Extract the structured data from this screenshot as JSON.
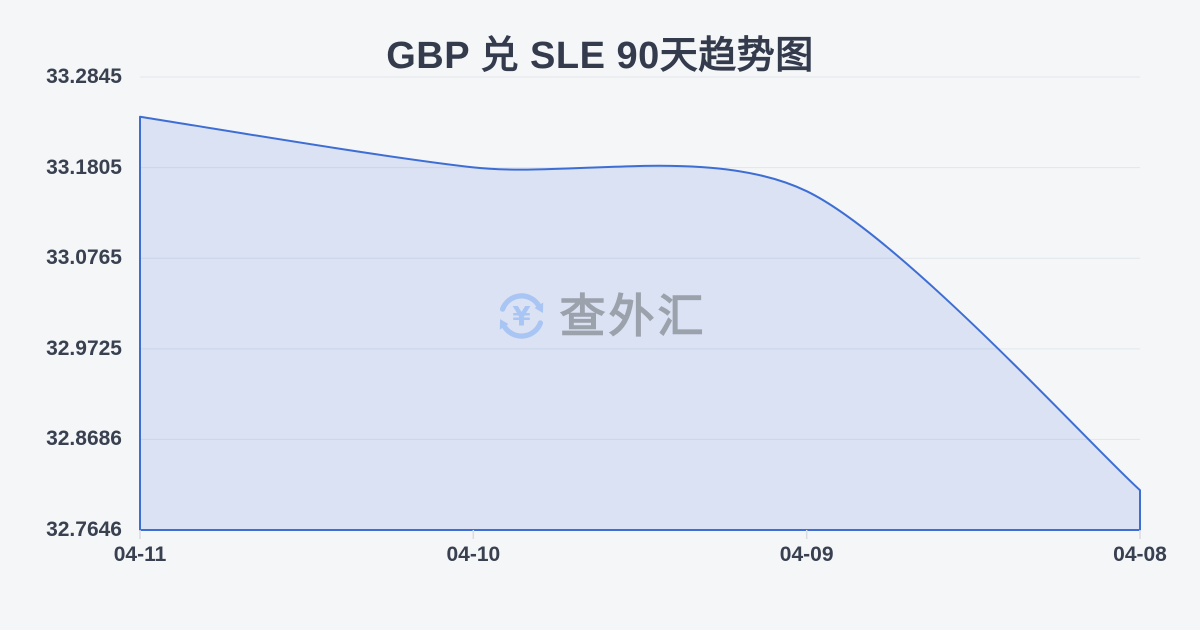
{
  "chart": {
    "title": "GBP 兑 SLE 90天趋势图"
  },
  "chart_data": {
    "type": "area",
    "title": "GBP 兑 SLE 90天趋势图",
    "categories": [
      "04-11",
      "04-10",
      "04-09",
      "04-08"
    ],
    "values": [
      33.2389,
      33.1808,
      33.1534,
      32.8103
    ],
    "series": [
      {
        "name": "GBP/SLE",
        "values": [
          33.2389,
          33.1808,
          33.1534,
          32.8103
        ]
      }
    ],
    "xlabel": "",
    "ylabel": "",
    "ylim": [
      32.7646,
      33.2845
    ],
    "y_ticks": [
      "33.2845",
      "33.1805",
      "33.0765",
      "32.9725",
      "32.8686",
      "32.7646"
    ],
    "x_ticks": [
      "04-11",
      "04-10",
      "04-09",
      "04-08"
    ],
    "grid": true,
    "legend": false,
    "smooth": true,
    "note": "x axis runs newest (04-11) to oldest (04-08), left to right"
  },
  "watermark": {
    "text": "查外汇",
    "icon": "yen-exchange-refresh-icon"
  },
  "colors": {
    "background": "#f5f6f8",
    "line": "#3e6ed3",
    "area_fill": "rgba(100,140,230,0.18)",
    "gridline": "#e2e5eb",
    "axis_tick": "#d8dce3",
    "title_text": "#333b4d",
    "axis_text": "#394150",
    "watermark_text": "#9ba2ac",
    "watermark_icon": "#a9c5f3"
  }
}
